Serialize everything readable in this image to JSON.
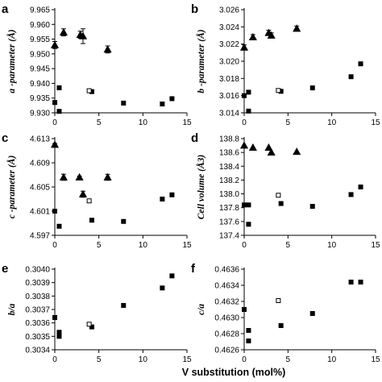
{
  "figure": {
    "xlabel": "V substitution (mol%)"
  },
  "colors": {
    "marker": "#000000",
    "axis": "#000000",
    "background": "#ffffff"
  },
  "chart_data": [
    {
      "panel": "a",
      "type": "scatter",
      "ylabel": "a -parameter (Å)",
      "xlim": [
        0,
        15
      ],
      "ylim": [
        9.93,
        9.965
      ],
      "xticks": [
        "0",
        "5",
        "10",
        "15"
      ],
      "yticks": [
        "9.930",
        "9.935",
        "9.940",
        "9.945",
        "9.950",
        "9.955",
        "9.960",
        "9.965"
      ],
      "series": [
        {
          "marker": "square",
          "filled": true,
          "points": [
            [
              0,
              9.9335
            ],
            [
              0.5,
              9.9385
            ],
            [
              0.5,
              9.9305
            ],
            [
              4.2,
              9.9372
            ],
            [
              7.8,
              9.9333
            ],
            [
              12.2,
              9.933
            ],
            [
              13.3,
              9.9348
            ]
          ]
        },
        {
          "marker": "square",
          "filled": false,
          "points": [
            [
              3.9,
              9.9375
            ]
          ]
        },
        {
          "marker": "triangle",
          "filled": true,
          "points": [
            [
              0,
              9.953,
              0.0012
            ],
            [
              1.0,
              9.9573,
              0.0012
            ],
            [
              2.9,
              9.9565,
              0.0012
            ],
            [
              3.2,
              9.956,
              0.0025
            ],
            [
              6.0,
              9.9515,
              0.0012
            ]
          ]
        }
      ]
    },
    {
      "panel": "b",
      "type": "scatter",
      "ylabel": "b -parameter (Å)",
      "xlim": [
        0,
        15
      ],
      "ylim": [
        3.014,
        3.026
      ],
      "xticks": [
        "0",
        "5",
        "10",
        "15"
      ],
      "yticks": [
        "3.014",
        "3.016",
        "3.018",
        "3.020",
        "3.022",
        "3.024",
        "3.026"
      ],
      "series": [
        {
          "marker": "square",
          "filled": true,
          "points": [
            [
              0,
              3.016
            ],
            [
              0.5,
              3.0164
            ],
            [
              0.5,
              3.0142
            ],
            [
              4.2,
              3.0165
            ],
            [
              7.8,
              3.0169
            ],
            [
              12.2,
              3.0182
            ],
            [
              13.3,
              3.0197
            ]
          ]
        },
        {
          "marker": "square",
          "filled": false,
          "points": [
            [
              3.9,
              3.0166
            ]
          ]
        },
        {
          "marker": "triangle",
          "filled": true,
          "points": [
            [
              0,
              3.0216,
              0.0003
            ],
            [
              1.0,
              3.0228,
              0.0003
            ],
            [
              2.8,
              3.0233,
              0.0003
            ],
            [
              3.1,
              3.023,
              0.0003
            ],
            [
              6.0,
              3.0238,
              0.0003
            ]
          ]
        }
      ]
    },
    {
      "panel": "c",
      "type": "scatter",
      "ylabel": "c -parameter (Å)",
      "xlim": [
        0,
        15
      ],
      "ylim": [
        4.597,
        4.613
      ],
      "xticks": [
        "0",
        "5",
        "10",
        "15"
      ],
      "yticks": [
        "4.597",
        "4.601",
        "4.605",
        "4.609",
        "4.613"
      ],
      "series": [
        {
          "marker": "square",
          "filled": true,
          "points": [
            [
              0,
              4.601
            ],
            [
              0.5,
              4.5985
            ],
            [
              4.2,
              4.5995
            ],
            [
              7.8,
              4.5993
            ],
            [
              12.2,
              4.603
            ],
            [
              13.3,
              4.6037
            ]
          ]
        },
        {
          "marker": "square",
          "filled": false,
          "points": [
            [
              3.9,
              4.6027
            ]
          ]
        },
        {
          "marker": "triangle",
          "filled": true,
          "points": [
            [
              0,
              4.612,
              0.0002
            ],
            [
              1.0,
              4.6066,
              0.0005
            ],
            [
              2.8,
              4.6066,
              0.0002
            ],
            [
              3.2,
              4.6038,
              0.0005
            ],
            [
              6.0,
              4.6066,
              0.0005
            ]
          ]
        }
      ]
    },
    {
      "panel": "d",
      "type": "scatter",
      "ylabel": "Cell volume (Å3)",
      "xlim": [
        0,
        15
      ],
      "ylim": [
        137.4,
        138.8
      ],
      "xticks": [
        "0",
        "5",
        "10",
        "15"
      ],
      "yticks": [
        "137.4",
        "137.6",
        "137.8",
        "138.0",
        "138.2",
        "138.4",
        "138.6",
        "138.8"
      ],
      "series": [
        {
          "marker": "square",
          "filled": true,
          "points": [
            [
              0,
              137.84
            ],
            [
              0.5,
              137.84
            ],
            [
              0.5,
              137.56
            ],
            [
              4.2,
              137.86
            ],
            [
              7.8,
              137.82
            ],
            [
              12.2,
              137.99
            ],
            [
              13.3,
              138.1
            ]
          ]
        },
        {
          "marker": "square",
          "filled": false,
          "points": [
            [
              3.9,
              137.98
            ]
          ]
        },
        {
          "marker": "triangle",
          "filled": true,
          "points": [
            [
              0,
              138.7
            ],
            [
              1.0,
              138.67
            ],
            [
              2.8,
              138.67
            ],
            [
              3.1,
              138.6
            ],
            [
              6.0,
              138.61
            ]
          ]
        }
      ]
    },
    {
      "panel": "e",
      "type": "scatter",
      "ylabel": "b/a",
      "xlim": [
        0,
        15
      ],
      "ylim": [
        0.3034,
        0.304
      ],
      "xticks": [
        "0",
        "5",
        "10",
        "15"
      ],
      "yticks": [
        "0.3034",
        "0.3035",
        "0.3036",
        "0.3037",
        "0.3038",
        "0.3039",
        "0.3040"
      ],
      "series": [
        {
          "marker": "square",
          "filled": true,
          "points": [
            [
              0,
              0.30364
            ],
            [
              0.5,
              0.30353
            ],
            [
              0.5,
              0.3035
            ],
            [
              4.2,
              0.30357
            ],
            [
              7.8,
              0.30373
            ],
            [
              12.2,
              0.30386
            ],
            [
              13.3,
              0.30395
            ]
          ]
        },
        {
          "marker": "square",
          "filled": false,
          "points": [
            [
              3.9,
              0.30359
            ]
          ]
        }
      ]
    },
    {
      "panel": "f",
      "type": "scatter",
      "ylabel": "c/a",
      "xlim": [
        0,
        15
      ],
      "ylim": [
        0.4626,
        0.4636
      ],
      "xticks": [
        "0",
        "5",
        "10",
        "15"
      ],
      "yticks": [
        "0.4626",
        "0.4628",
        "0.4630",
        "0.4632",
        "0.4634",
        "0.4636"
      ],
      "series": [
        {
          "marker": "square",
          "filled": true,
          "points": [
            [
              0,
              0.4631
            ],
            [
              0.5,
              0.46284
            ],
            [
              0.5,
              0.46271
            ],
            [
              4.2,
              0.4629
            ],
            [
              7.8,
              0.46305
            ],
            [
              12.2,
              0.46344
            ],
            [
              13.3,
              0.46344
            ]
          ]
        },
        {
          "marker": "square",
          "filled": false,
          "points": [
            [
              3.9,
              0.46321
            ]
          ]
        }
      ]
    }
  ]
}
